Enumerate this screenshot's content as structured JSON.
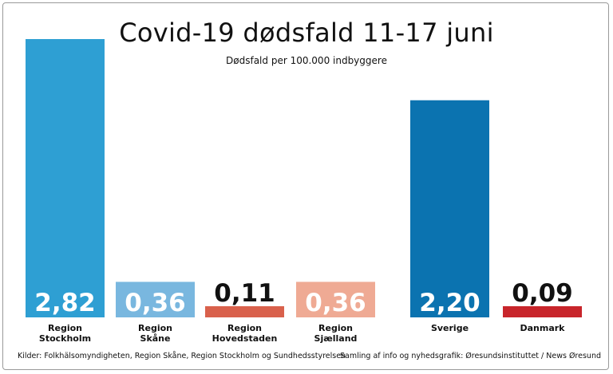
{
  "chart_data": {
    "type": "bar",
    "title": "Covid-19 dødsfald 11-17 juni",
    "subtitle": "Dødsfald per 100.000 indbyggere",
    "categories": [
      [
        "Region",
        "Stockholm"
      ],
      [
        "Region",
        "Skåne"
      ],
      [
        "Region",
        "Hovedstaden"
      ],
      [
        "Region",
        "Sjælland"
      ],
      [
        "Sverige"
      ],
      [
        "Danmark"
      ]
    ],
    "values": [
      2.82,
      0.36,
      0.11,
      0.36,
      2.2,
      0.09
    ],
    "value_labels": [
      "2,82",
      "0,36",
      "0,11",
      "0,36",
      "2,20",
      "0,09"
    ],
    "colors": [
      "#2e9fd3",
      "#79b7df",
      "#d9614c",
      "#efaa94",
      "#0b73b0",
      "#c8252b"
    ],
    "ylim": [
      0,
      2.82
    ],
    "grid": false,
    "legend": "none"
  },
  "footer": {
    "source": "Kilder: Folkhälsomyndigheten, Region Skåne, Region Stockholm og Sundhedsstyrelsen",
    "credit": "Samling af info og nyhedsgrafik: Øresundsinstituttet / News Øresund"
  }
}
